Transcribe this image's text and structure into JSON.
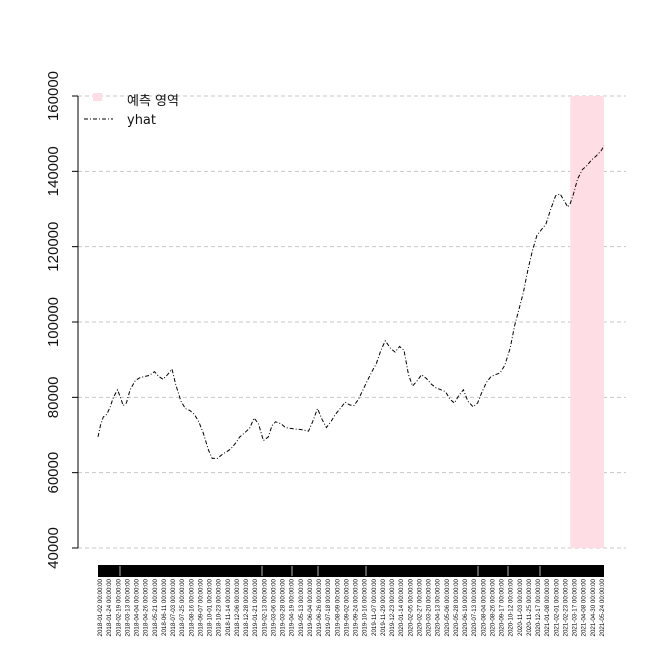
{
  "chart_data": {
    "type": "line",
    "title": "",
    "xlabel": "",
    "ylabel": "",
    "ylim": [
      40000,
      160000
    ],
    "y_ticks": [
      40000,
      60000,
      80000,
      100000,
      120000,
      140000,
      160000
    ],
    "y_tick_labels": [
      "40000",
      "60000",
      "80000",
      "100000",
      "120000",
      "140000",
      "160000"
    ],
    "grid": "horizontal dashed",
    "legend": {
      "placement": "top-left",
      "items": [
        {
          "label": "예측 영역",
          "kind": "box",
          "color": "#ffdde4"
        },
        {
          "label": "yhat",
          "kind": "dashdot-line",
          "color": "#000000"
        }
      ]
    },
    "forecast_region": {
      "start_date": "2021-03-09",
      "end_date": "2021-05-31",
      "color": "#ffdde4"
    },
    "x_tick_labels": [
      "2018-01-02 00:00:00",
      "2018-01-24 00:00:00",
      "2018-02-19 00:00:00",
      "2018-03-13 00:00:00",
      "2018-04-04 00:00:00",
      "2018-04-26 00:00:00",
      "2018-05-21 00:00:00",
      "2018-06-11 00:00:00",
      "2018-07-03 00:00:00",
      "2018-07-25 00:00:00",
      "2018-08-16 00:00:00",
      "2018-09-07 00:00:00",
      "2018-10-01 00:00:00",
      "2018-10-23 00:00:00",
      "2018-11-14 00:00:00",
      "2018-12-06 00:00:00",
      "2018-12-28 00:00:00",
      "2019-01-21 00:00:00",
      "2019-02-13 00:00:00",
      "2019-03-06 00:00:00",
      "2019-03-28 00:00:00",
      "2019-04-19 00:00:00",
      "2019-05-13 00:00:00",
      "2019-06-04 00:00:00",
      "2019-06-26 00:00:00",
      "2019-07-18 00:00:00",
      "2019-08-09 00:00:00",
      "2019-09-02 00:00:00",
      "2019-09-24 00:00:00",
      "2019-10-16 00:00:00",
      "2019-11-07 00:00:00",
      "2019-11-29 00:00:00",
      "2019-12-23 00:00:00",
      "2020-01-14 00:00:00",
      "2020-02-05 00:00:00",
      "2020-02-27 00:00:00",
      "2020-03-20 00:00:00",
      "2020-04-13 00:00:00",
      "2020-05-06 00:00:00",
      "2020-05-28 00:00:00",
      "2020-06-19 00:00:00",
      "2020-07-13 00:00:00",
      "2020-08-04 00:00:00",
      "2020-08-26 00:00:00",
      "2020-09-17 00:00:00",
      "2020-10-12 00:00:00",
      "2020-11-03 00:00:00",
      "2020-11-25 00:00:00",
      "2020-12-17 00:00:00",
      "2021-01-08 00:00:00",
      "2021-02-01 00:00:00",
      "2021-02-23 00:00:00",
      "2021-03-17 00:00:00",
      "2021-04-08 00:00:00",
      "2021-04-30 00:00:00",
      "2021-05-24 00:00:00"
    ],
    "series": [
      {
        "name": "yhat",
        "style": "dashdot",
        "color": "#000000",
        "points": [
          [
            "2018-01-02",
            69500
          ],
          [
            "2018-01-08",
            72500
          ],
          [
            "2018-01-15",
            74800
          ],
          [
            "2018-01-24",
            75500
          ],
          [
            "2018-02-01",
            77500
          ],
          [
            "2018-02-09",
            80000
          ],
          [
            "2018-02-19",
            82000
          ],
          [
            "2018-02-26",
            80000
          ],
          [
            "2018-03-05",
            77800
          ],
          [
            "2018-03-13",
            78500
          ],
          [
            "2018-03-22",
            82000
          ],
          [
            "2018-04-04",
            84500
          ],
          [
            "2018-04-15",
            85200
          ],
          [
            "2018-04-26",
            85500
          ],
          [
            "2018-05-08",
            85800
          ],
          [
            "2018-05-21",
            86800
          ],
          [
            "2018-06-01",
            85500
          ],
          [
            "2018-06-11",
            84800
          ],
          [
            "2018-06-22",
            86000
          ],
          [
            "2018-07-03",
            87500
          ],
          [
            "2018-07-12",
            83500
          ],
          [
            "2018-07-25",
            79000
          ],
          [
            "2018-08-05",
            77000
          ],
          [
            "2018-08-16",
            76500
          ],
          [
            "2018-08-27",
            75500
          ],
          [
            "2018-09-07",
            73500
          ],
          [
            "2018-09-18",
            70500
          ],
          [
            "2018-10-01",
            66000
          ],
          [
            "2018-10-10",
            63800
          ],
          [
            "2018-10-23",
            63800
          ],
          [
            "2018-11-03",
            64800
          ],
          [
            "2018-11-14",
            65500
          ],
          [
            "2018-11-25",
            66300
          ],
          [
            "2018-12-06",
            67800
          ],
          [
            "2018-12-17",
            69500
          ],
          [
            "2018-12-28",
            70500
          ],
          [
            "2019-01-10",
            71800
          ],
          [
            "2019-01-21",
            74500
          ],
          [
            "2019-02-01",
            73000
          ],
          [
            "2019-02-13",
            68500
          ],
          [
            "2019-02-25",
            69500
          ],
          [
            "2019-03-06",
            72500
          ],
          [
            "2019-03-15",
            73500
          ],
          [
            "2019-03-28",
            73000
          ],
          [
            "2019-04-08",
            72000
          ],
          [
            "2019-04-19",
            71800
          ],
          [
            "2019-05-01",
            71600
          ],
          [
            "2019-05-13",
            71500
          ],
          [
            "2019-05-24",
            71300
          ],
          [
            "2019-06-04",
            71000
          ],
          [
            "2019-06-14",
            73500
          ],
          [
            "2019-06-26",
            77000
          ],
          [
            "2019-07-08",
            74000
          ],
          [
            "2019-07-18",
            72000
          ],
          [
            "2019-07-29",
            73500
          ],
          [
            "2019-08-09",
            75500
          ],
          [
            "2019-08-21",
            77000
          ],
          [
            "2019-09-02",
            78700
          ],
          [
            "2019-09-13",
            78000
          ],
          [
            "2019-09-24",
            77800
          ],
          [
            "2019-10-05",
            79500
          ],
          [
            "2019-10-16",
            82000
          ],
          [
            "2019-10-27",
            84500
          ],
          [
            "2019-11-07",
            86800
          ],
          [
            "2019-11-18",
            89000
          ],
          [
            "2019-11-29",
            92500
          ],
          [
            "2019-12-10",
            95000
          ],
          [
            "2019-12-23",
            93000
          ],
          [
            "2020-01-03",
            92000
          ],
          [
            "2020-01-14",
            93500
          ],
          [
            "2020-01-25",
            92500
          ],
          [
            "2020-02-05",
            86000
          ],
          [
            "2020-02-15",
            83000
          ],
          [
            "2020-02-27",
            84500
          ],
          [
            "2020-03-08",
            86000
          ],
          [
            "2020-03-20",
            85000
          ],
          [
            "2020-04-01",
            83500
          ],
          [
            "2020-04-13",
            82500
          ],
          [
            "2020-04-25",
            82000
          ],
          [
            "2020-05-06",
            81500
          ],
          [
            "2020-05-17",
            79500
          ],
          [
            "2020-05-28",
            78500
          ],
          [
            "2020-06-08",
            80500
          ],
          [
            "2020-06-19",
            82000
          ],
          [
            "2020-06-30",
            79000
          ],
          [
            "2020-07-13",
            77500
          ],
          [
            "2020-07-24",
            78500
          ],
          [
            "2020-08-04",
            81500
          ],
          [
            "2020-08-15",
            84000
          ],
          [
            "2020-08-26",
            85500
          ],
          [
            "2020-09-06",
            86000
          ],
          [
            "2020-09-17",
            86500
          ],
          [
            "2020-09-29",
            88500
          ],
          [
            "2020-10-12",
            93000
          ],
          [
            "2020-10-23",
            99000
          ],
          [
            "2020-11-03",
            103500
          ],
          [
            "2020-11-14",
            108000
          ],
          [
            "2020-11-25",
            114000
          ],
          [
            "2020-12-06",
            119000
          ],
          [
            "2020-12-17",
            123000
          ],
          [
            "2020-12-28",
            124500
          ],
          [
            "2021-01-08",
            126000
          ],
          [
            "2021-01-20",
            130000
          ],
          [
            "2021-02-01",
            133500
          ],
          [
            "2021-02-12",
            134000
          ],
          [
            "2021-02-23",
            132000
          ],
          [
            "2021-03-03",
            130500
          ],
          [
            "2021-03-09",
            131500
          ],
          [
            "2021-03-17",
            134000
          ],
          [
            "2021-03-27",
            138000
          ],
          [
            "2021-04-08",
            140500
          ],
          [
            "2021-04-19",
            141500
          ],
          [
            "2021-04-30",
            143000
          ],
          [
            "2021-05-11",
            144000
          ],
          [
            "2021-05-24",
            145500
          ],
          [
            "2021-05-31",
            146800
          ]
        ]
      }
    ]
  }
}
